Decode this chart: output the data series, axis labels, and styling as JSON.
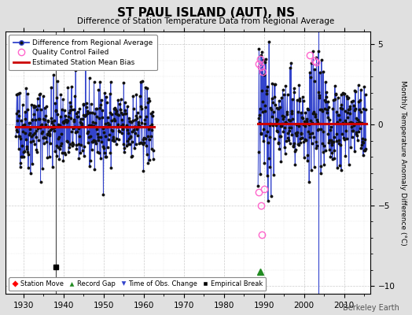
{
  "title": "ST PAUL ISLAND (AUT), NS",
  "subtitle": "Difference of Station Temperature Data from Regional Average",
  "ylabel": "Monthly Temperature Anomaly Difference (°C)",
  "watermark": "Berkeley Earth",
  "ylim": [
    -10.5,
    5.8
  ],
  "yticks": [
    -10,
    -5,
    0,
    5
  ],
  "xlim": [
    1925.5,
    2016.5
  ],
  "xticks": [
    1930,
    1940,
    1950,
    1960,
    1970,
    1980,
    1990,
    2000,
    2010
  ],
  "segment1_start": 1928.083,
  "segment1_end": 1962.5,
  "segment2_start": 1988.5,
  "segment2_end": 2015.5,
  "bias1": -0.12,
  "bias2": 0.08,
  "seed": 42,
  "line_color": "#3344cc",
  "marker_color": "#111111",
  "bias_color": "#cc0000",
  "qc_fail_color": "#ff66cc",
  "background_color": "#e0e0e0",
  "plot_bg_color": "#ffffff",
  "grid_color": "#aaaaaa",
  "empirical_break_x": 1938.0,
  "empirical_break_y": -8.8,
  "vertical_break_x": 1938.0,
  "record_gap_x": 1989.0,
  "record_gap_y": -9.1,
  "time_obs_x": 2003.5,
  "qc_times": [
    1988.6,
    1988.75,
    1989.0,
    1989.17,
    1989.33,
    1989.5,
    1989.67,
    1990.0,
    2001.5,
    2002.5,
    2003.0
  ],
  "qc_values": [
    3.8,
    -4.2,
    4.1,
    -5.0,
    3.6,
    -6.8,
    3.3,
    -4.0,
    4.3,
    4.0,
    3.9
  ]
}
